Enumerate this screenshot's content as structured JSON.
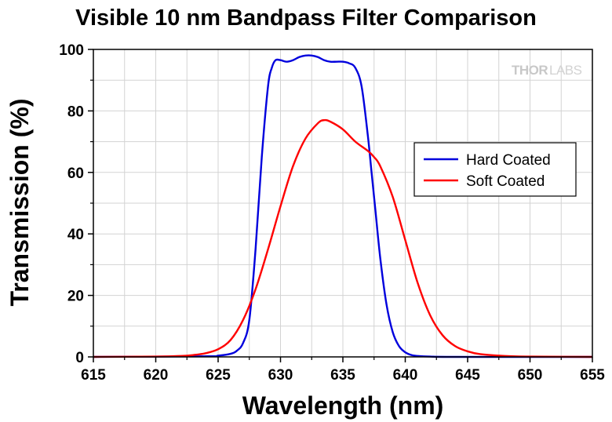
{
  "chart_data": {
    "type": "line",
    "title": "Visible 10 nm Bandpass Filter Comparison",
    "xlabel": "Wavelength (nm)",
    "ylabel": "Transmission (%)",
    "xlim": [
      615,
      655
    ],
    "ylim": [
      0,
      100
    ],
    "xticks": [
      615,
      620,
      625,
      630,
      635,
      640,
      645,
      650,
      655
    ],
    "yticks": [
      0,
      20,
      40,
      60,
      80,
      100
    ],
    "grid": true,
    "legend_position": "center-right",
    "brand": {
      "strong": "THOR",
      "light": "LABS"
    },
    "series": [
      {
        "name": "Hard Coated",
        "color": "#0000dd",
        "x": [
          615,
          624,
          625,
          626,
          626.5,
          627,
          627.5,
          628,
          628.5,
          629,
          629.3,
          629.6,
          630,
          630.5,
          631,
          631.5,
          632,
          632.5,
          633,
          633.5,
          634,
          634.5,
          635,
          635.5,
          636,
          636.5,
          637,
          637.3,
          637.6,
          638,
          638.5,
          639,
          639.5,
          640,
          640.5,
          641,
          642,
          644,
          655
        ],
        "y": [
          0,
          0.2,
          0.4,
          1.0,
          2.0,
          4.5,
          12,
          35,
          65,
          88,
          94,
          96.5,
          96.5,
          96,
          96.5,
          97.5,
          98,
          98,
          97.5,
          96.5,
          96,
          96,
          96,
          95.5,
          94,
          88,
          72,
          60,
          48,
          32,
          17,
          8,
          3.5,
          1.5,
          0.6,
          0.3,
          0.1,
          0,
          0
        ]
      },
      {
        "name": "Soft Coated",
        "color": "#ff0000",
        "x": [
          615,
          620,
          622,
          623,
          624,
          625,
          626,
          627,
          628,
          629,
          630,
          631,
          632,
          633,
          633.5,
          634,
          635,
          636,
          637,
          637.5,
          638,
          639,
          640,
          641,
          642,
          643,
          644,
          645,
          646,
          648,
          650,
          655
        ],
        "y": [
          0,
          0.1,
          0.3,
          0.6,
          1.2,
          2.5,
          5.5,
          12,
          22,
          35,
          49,
          62,
          71,
          76,
          77,
          76.5,
          74,
          70,
          67,
          65,
          62,
          52,
          38,
          24,
          13.5,
          7,
          3.5,
          1.8,
          0.9,
          0.3,
          0.1,
          0
        ]
      }
    ]
  }
}
